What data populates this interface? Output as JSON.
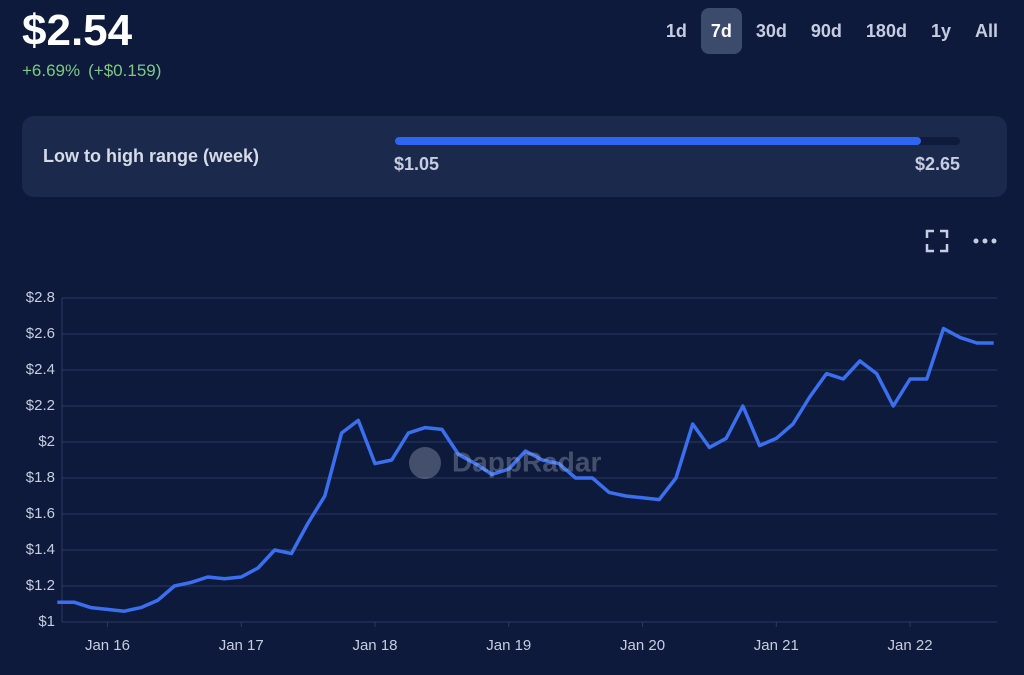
{
  "header": {
    "price": {
      "value": 2.54,
      "label": "$2.54"
    },
    "change_pct": "+6.69%",
    "change_abs": "(+$0.159)"
  },
  "timeframes": {
    "options": [
      "1d",
      "7d",
      "30d",
      "90d",
      "180d",
      "1y",
      "All"
    ],
    "selected": "7d"
  },
  "range": {
    "label": "Low to high range (week)",
    "low": {
      "value": 1.05,
      "label": "$1.05"
    },
    "high": {
      "value": 2.65,
      "label": "$2.65"
    }
  },
  "chart_data": {
    "type": "line",
    "watermark": "DappRadar",
    "x": [
      15.625,
      15.75,
      15.875,
      16,
      16.125,
      16.25,
      16.375,
      16.5,
      16.625,
      16.75,
      16.875,
      17,
      17.125,
      17.25,
      17.375,
      17.5,
      17.625,
      17.75,
      17.875,
      18,
      18.125,
      18.25,
      18.375,
      18.5,
      18.625,
      18.75,
      18.875,
      19,
      19.125,
      19.25,
      19.375,
      19.5,
      19.625,
      19.75,
      19.875,
      20,
      20.125,
      20.25,
      20.375,
      20.5,
      20.625,
      20.75,
      20.875,
      21,
      21.125,
      21.25,
      21.375,
      21.5,
      21.625,
      21.75,
      21.875,
      22,
      22.125,
      22.25,
      22.375,
      22.5,
      22.625
    ],
    "values": [
      1.11,
      1.11,
      1.08,
      1.07,
      1.06,
      1.08,
      1.12,
      1.2,
      1.22,
      1.25,
      1.24,
      1.25,
      1.3,
      1.4,
      1.38,
      1.55,
      1.7,
      2.05,
      2.12,
      1.88,
      1.9,
      2.05,
      2.08,
      2.07,
      1.93,
      1.88,
      1.82,
      1.85,
      1.95,
      1.9,
      1.88,
      1.8,
      1.8,
      1.72,
      1.7,
      1.69,
      1.68,
      1.8,
      2.1,
      1.97,
      2.02,
      2.2,
      1.98,
      2.02,
      2.1,
      2.25,
      2.38,
      2.35,
      2.45,
      2.38,
      2.2,
      2.35,
      2.35,
      2.63,
      2.58,
      2.55,
      2.55
    ],
    "color": "#3a6ff0",
    "xlim": [
      15.66,
      22.65
    ],
    "xticks": [
      {
        "value": 16,
        "label": "Jan 16"
      },
      {
        "value": 17,
        "label": "Jan 17"
      },
      {
        "value": 18,
        "label": "Jan 18"
      },
      {
        "value": 19,
        "label": "Jan 19"
      },
      {
        "value": 20,
        "label": "Jan 20"
      },
      {
        "value": 21,
        "label": "Jan 21"
      },
      {
        "value": 22,
        "label": "Jan 22"
      }
    ],
    "ylim": [
      1,
      2.8
    ],
    "yticks": [
      {
        "value": 1,
        "label": "$1"
      },
      {
        "value": 1.2,
        "label": "$1.2"
      },
      {
        "value": 1.4,
        "label": "$1.4"
      },
      {
        "value": 1.6,
        "label": "$1.6"
      },
      {
        "value": 1.8,
        "label": "$1.8"
      },
      {
        "value": 2,
        "label": "$2"
      },
      {
        "value": 2.2,
        "label": "$2.2"
      },
      {
        "value": 2.4,
        "label": "$2.4"
      },
      {
        "value": 2.6,
        "label": "$2.6"
      },
      {
        "value": 2.8,
        "label": "$2.8"
      }
    ],
    "grid": true
  }
}
